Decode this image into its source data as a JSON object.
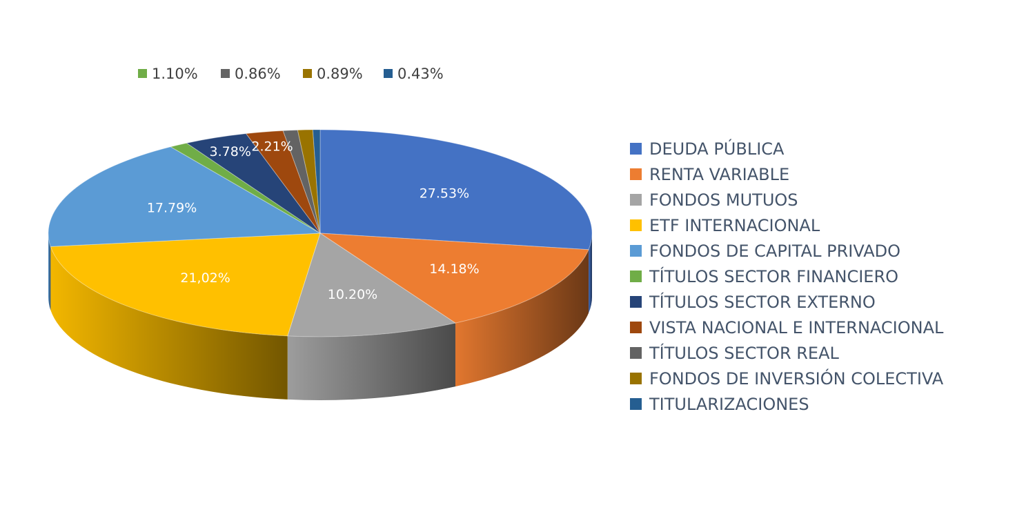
{
  "chart_data": {
    "type": "pie",
    "style": "3d",
    "legend_position": "right",
    "series": [
      {
        "name": "DEUDA PÚBLICA",
        "value": 27.53,
        "label": "27.53%",
        "color": "#4472c4"
      },
      {
        "name": "RENTA VARIABLE",
        "value": 14.18,
        "label": "14.18%",
        "color": "#ed7d31"
      },
      {
        "name": "FONDOS MUTUOS",
        "value": 10.2,
        "label": "10.20%",
        "color": "#a5a5a5"
      },
      {
        "name": "ETF INTERNACIONAL",
        "value": 21.02,
        "label": "21,02%",
        "color": "#ffc000"
      },
      {
        "name": "FONDOS DE CAPITAL PRIVADO",
        "value": 17.79,
        "label": "17.79%",
        "color": "#5b9bd5"
      },
      {
        "name": "TÍTULOS SECTOR FINANCIERO",
        "value": 1.1,
        "label": "1.10%",
        "color": "#70ad47"
      },
      {
        "name": "TÍTULOS SECTOR EXTERNO",
        "value": 3.78,
        "label": "3.78%",
        "color": "#264478"
      },
      {
        "name": "VISTA NACIONAL E INTERNACIONAL",
        "value": 2.21,
        "label": "2.21%",
        "color": "#9e480e"
      },
      {
        "name": "TÍTULOS SECTOR REAL",
        "value": 0.86,
        "label": "0.86%",
        "color": "#636363"
      },
      {
        "name": "FONDOS DE INVERSIÓN COLECTIVA",
        "value": 0.89,
        "label": "0.89%",
        "color": "#997300"
      },
      {
        "name": "TITULARIZACIONES",
        "value": 0.43,
        "label": "0.43%",
        "color": "#255e91"
      }
    ],
    "small_values_legend": [
      {
        "label": "1.10%",
        "color": "#70ad47"
      },
      {
        "label": "0.86%",
        "color": "#636363"
      },
      {
        "label": "0.89%",
        "color": "#997300"
      },
      {
        "label": "0.43%",
        "color": "#255e91"
      }
    ]
  }
}
